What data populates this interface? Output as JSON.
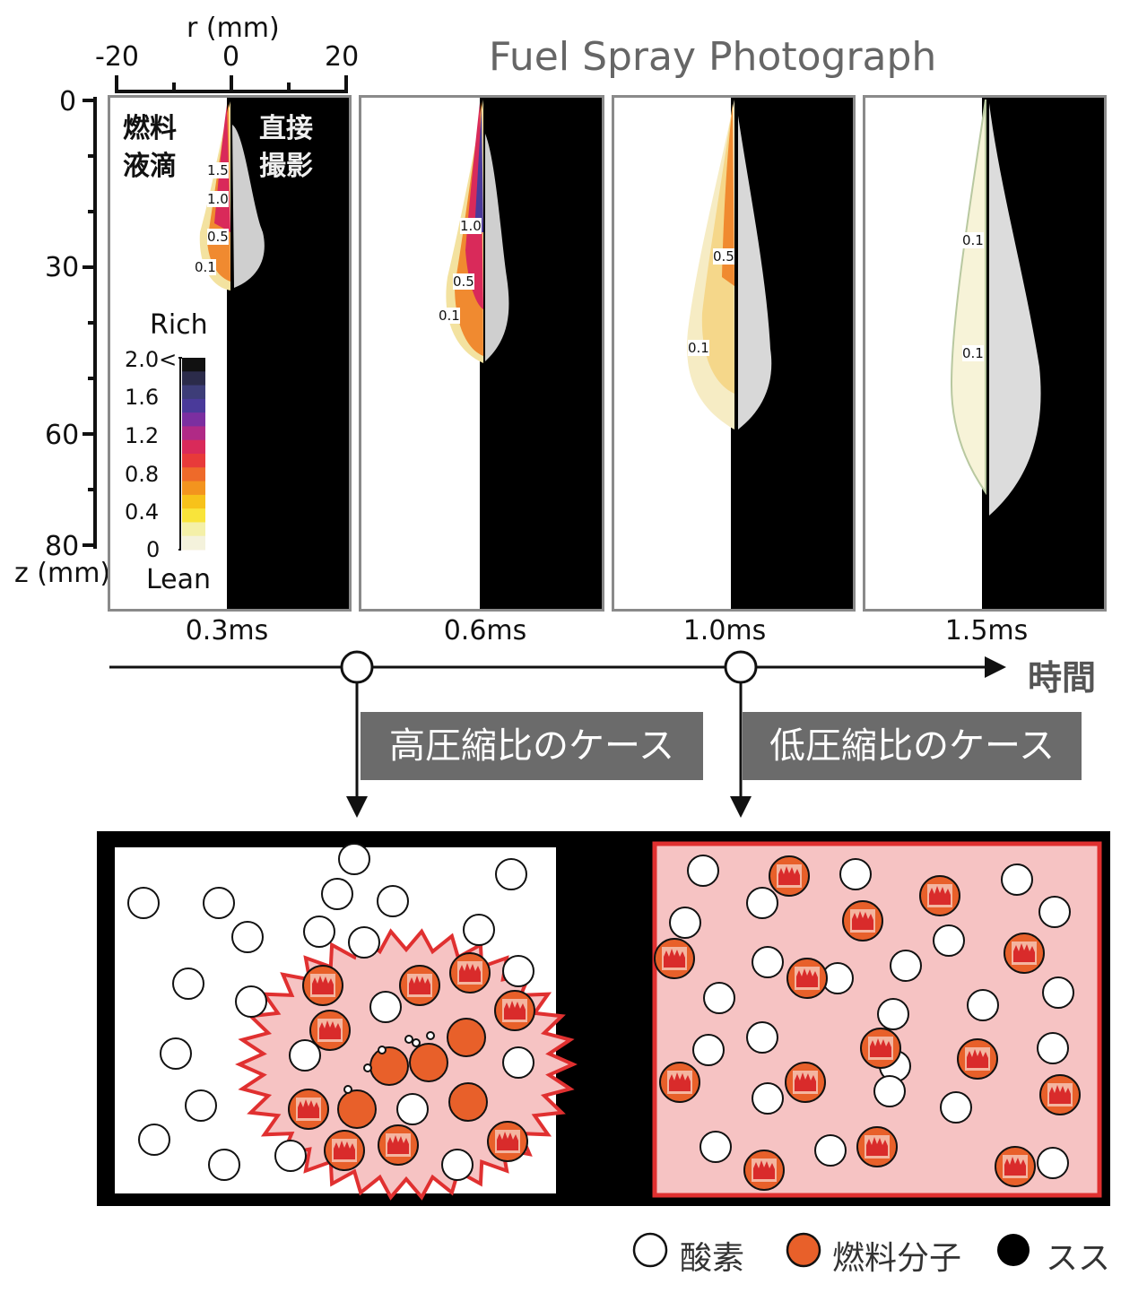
{
  "title": "Fuel Spray Photograph",
  "axes": {
    "r_label": "r (mm)",
    "r_ticks": [
      "-20",
      "0",
      "20"
    ],
    "z_label": "z (mm)",
    "z_ticks": [
      "0",
      "30",
      "60",
      "80"
    ]
  },
  "panel1_labels": {
    "left_line1": "燃料",
    "left_line2": "液滴",
    "right_line1": "直接",
    "right_line2": "撮影"
  },
  "colorbar": {
    "rich": "Rich",
    "lean": "Lean",
    "ticks": [
      "2.0<",
      "1.6",
      "1.2",
      "0.8",
      "0.4",
      "0"
    ],
    "colors": [
      "#111111",
      "#2b2b4a",
      "#3d3d78",
      "#4a3a9a",
      "#7b2fa0",
      "#b02a86",
      "#d92a5a",
      "#e83a3a",
      "#ee6a2a",
      "#f3941e",
      "#f7c21a",
      "#f9e43a",
      "#f4f0a8",
      "#f4f2dc"
    ]
  },
  "contours": {
    "p1": [
      "1.5",
      "1.0",
      "0.5",
      "0.1"
    ],
    "p2": [
      "1.0",
      "0.5",
      "0.1"
    ],
    "p3": [
      "0.5",
      "0.1"
    ],
    "p4": [
      "0.1",
      "0.1"
    ]
  },
  "times": [
    "0.3ms",
    "0.6ms",
    "1.0ms",
    "1.5ms"
  ],
  "time_axis_label": "時間",
  "cases": {
    "high": "高圧縮比のケース",
    "low": "低圧縮比のケース"
  },
  "legend": {
    "oxygen": "酸素",
    "fuel": "燃料分子",
    "soot": "スス"
  },
  "colors": {
    "fuel_orange": "#e8602a",
    "flame_red": "#d92b2b",
    "mix_pink": "#f6c3c3",
    "case_gray": "#6b6b6b"
  }
}
